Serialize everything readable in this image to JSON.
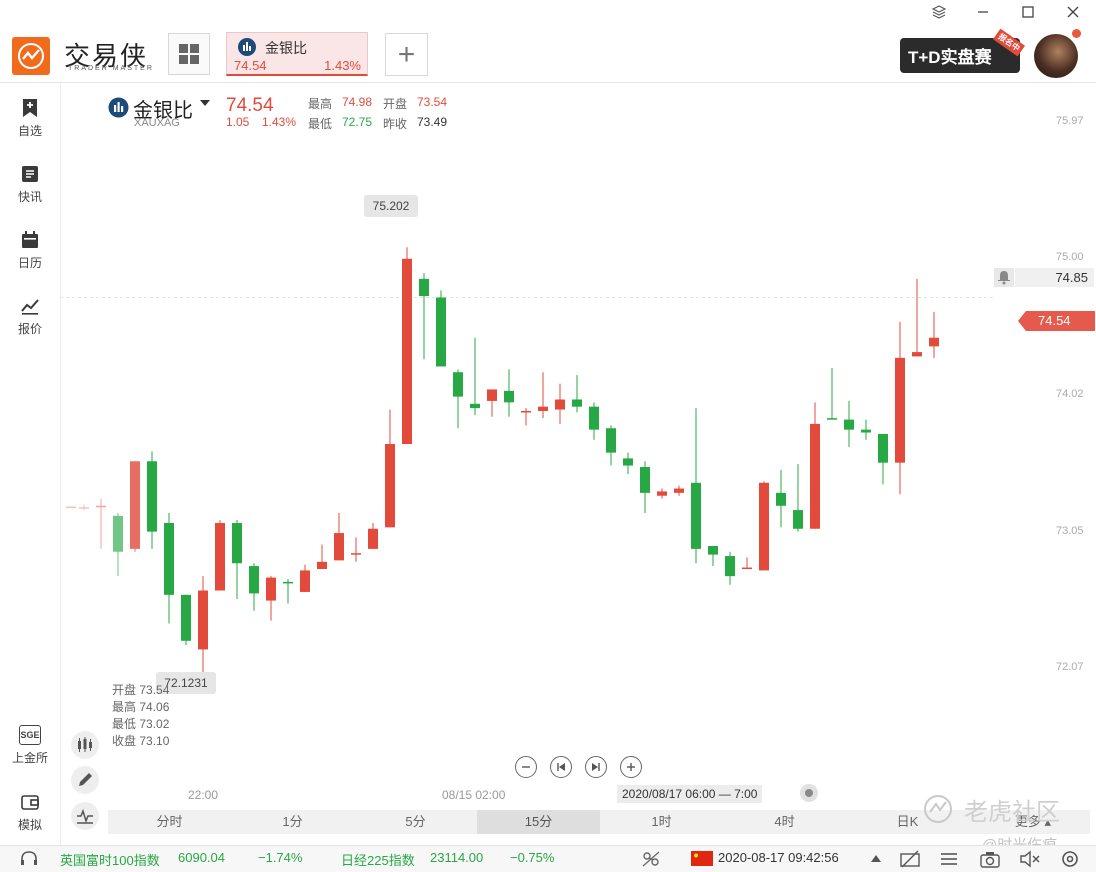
{
  "window": {
    "controls": [
      "layers-icon",
      "minimize-icon",
      "maximize-icon",
      "close-icon"
    ]
  },
  "app": {
    "brand": "交易侠",
    "brand_sub": "TRADER MASTER"
  },
  "tab": {
    "name": "金银比",
    "price": "74.54",
    "change_pct": "1.43%"
  },
  "promo": {
    "text": "T+D实盘赛",
    "badge": "报名中"
  },
  "sidebar": {
    "items": [
      {
        "label": "自选",
        "icon": "bookmark-icon"
      },
      {
        "label": "快讯",
        "icon": "news-icon"
      },
      {
        "label": "日历",
        "icon": "calendar-icon"
      },
      {
        "label": "报价",
        "icon": "quote-chart-icon"
      }
    ],
    "bottom": [
      {
        "label": "上金所",
        "icon": "sge-icon",
        "icon_text": "SGE"
      },
      {
        "label": "模拟",
        "icon": "wallet-icon"
      }
    ]
  },
  "header": {
    "name": "金银比",
    "code": "XAUXAG",
    "price": "74.54",
    "change": "1.05",
    "change_pct": "1.43%",
    "high_label": "最高",
    "high": "74.98",
    "open_label": "开盘",
    "open": "73.54",
    "low_label": "最低",
    "low": "72.75",
    "prev_label": "昨收",
    "prev": "73.49"
  },
  "ohlc_tip": {
    "open_label": "开盘",
    "open": "73.54",
    "high_label": "最高",
    "high": "74.06",
    "low_label": "最低",
    "low": "73.02",
    "close_label": "收盘",
    "close": "73.10"
  },
  "chart_data": {
    "type": "candlestick",
    "y_ticks": [
      "75.97",
      "75.00",
      "74.02",
      "73.05",
      "72.07"
    ],
    "ylim": [
      71.63,
      76.26
    ],
    "x_labels": [
      "22:00",
      "08/15 02:00"
    ],
    "crosshair_time": "2020/08/17 06:00 — 7:00",
    "max_label": "75.202",
    "min_label": "72.1231",
    "alert_price": "74.85",
    "last_price": "74.54",
    "candles": [
      [
        73.39,
        73.39,
        73.37,
        73.41
      ],
      [
        73.39,
        73.4,
        73.1,
        73.45
      ],
      [
        73.33,
        73.08,
        72.91,
        73.35
      ],
      [
        73.1,
        73.71,
        73.08,
        73.71
      ],
      [
        73.71,
        73.22,
        73.1,
        73.78
      ],
      [
        73.28,
        72.78,
        72.58,
        73.35
      ],
      [
        72.78,
        72.46,
        72.43,
        72.78
      ],
      [
        72.4,
        72.81,
        72.16,
        72.91
      ],
      [
        72.81,
        73.28,
        72.81,
        73.3
      ],
      [
        73.28,
        73.0,
        72.75,
        73.3
      ],
      [
        72.98,
        72.79,
        72.67,
        73.0
      ],
      [
        72.74,
        72.9,
        72.6,
        72.91
      ],
      [
        72.87,
        72.86,
        72.72,
        72.89
      ],
      [
        72.8,
        72.95,
        72.8,
        72.99
      ],
      [
        72.96,
        73.01,
        72.96,
        73.13
      ],
      [
        73.02,
        73.21,
        73.02,
        73.35
      ],
      [
        73.07,
        73.07,
        73.01,
        73.18
      ],
      [
        73.1,
        73.24,
        73.1,
        73.28
      ],
      [
        73.25,
        73.83,
        73.25,
        74.07
      ],
      [
        73.83,
        75.12,
        73.83,
        75.2
      ],
      [
        74.98,
        74.86,
        74.42,
        75.02
      ],
      [
        74.85,
        74.37,
        74.38,
        74.9
      ],
      [
        74.33,
        74.16,
        73.94,
        74.35
      ],
      [
        74.11,
        74.08,
        74.03,
        74.57
      ],
      [
        74.13,
        74.21,
        74.02,
        74.21
      ],
      [
        74.2,
        74.12,
        74.02,
        74.35
      ],
      [
        74.06,
        74.06,
        73.96,
        74.08
      ],
      [
        74.06,
        74.09,
        74.01,
        74.33
      ],
      [
        74.07,
        74.14,
        73.97,
        74.25
      ],
      [
        74.14,
        74.09,
        74.05,
        74.31
      ],
      [
        74.09,
        73.93,
        73.86,
        74.12
      ],
      [
        73.94,
        73.77,
        73.68,
        73.96
      ],
      [
        73.73,
        73.68,
        73.62,
        73.77
      ],
      [
        73.67,
        73.49,
        73.35,
        73.71
      ],
      [
        73.47,
        73.5,
        73.45,
        73.52
      ],
      [
        73.49,
        73.52,
        73.47,
        73.54
      ],
      [
        73.56,
        73.1,
        73.0,
        74.08
      ],
      [
        73.12,
        73.06,
        72.98,
        73.08
      ],
      [
        73.05,
        72.91,
        72.85,
        73.08
      ],
      [
        72.96,
        72.97,
        72.96,
        73.04
      ],
      [
        72.95,
        73.56,
        72.95,
        73.57
      ],
      [
        73.49,
        73.4,
        73.25,
        73.65
      ],
      [
        73.37,
        73.24,
        73.22,
        73.69
      ],
      [
        73.24,
        73.97,
        73.24,
        74.12
      ],
      [
        74.01,
        74.0,
        74.0,
        74.36
      ],
      [
        74.0,
        73.93,
        73.81,
        74.13
      ],
      [
        73.93,
        73.91,
        73.86,
        74.0
      ],
      [
        73.9,
        73.7,
        73.55,
        73.9
      ],
      [
        73.7,
        74.43,
        73.48,
        74.68
      ],
      [
        74.44,
        74.47,
        74.44,
        74.98
      ],
      [
        74.51,
        74.57,
        74.43,
        74.75
      ]
    ]
  },
  "nav_buttons": [
    "zoom-out-icon",
    "step-back-icon",
    "step-forward-icon",
    "zoom-in-icon"
  ],
  "periods": [
    {
      "label": "分时",
      "active": false
    },
    {
      "label": "1分",
      "active": false
    },
    {
      "label": "5分",
      "active": false
    },
    {
      "label": "15分",
      "active": true
    },
    {
      "label": "1时",
      "active": false
    },
    {
      "label": "4时",
      "active": false
    },
    {
      "label": "日K",
      "active": false
    }
  ],
  "more_label": "更多",
  "status": {
    "idx1_name": "英国富时100指数",
    "idx1_value": "6090.04",
    "idx1_change": "−1.74%",
    "idx2_name": "日经225指数",
    "idx2_value": "23114.00",
    "idx2_change": "−0.75%",
    "datetime": "2020-08-17 09:42:56"
  },
  "watermark": {
    "main": "老虎社区",
    "sub": "@时光伤痕"
  },
  "colors": {
    "up": "#e24b3b",
    "down": "#27a844",
    "brand": "#f06b1c"
  }
}
